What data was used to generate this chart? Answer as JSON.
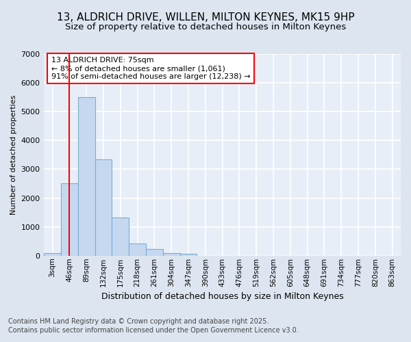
{
  "title_line1": "13, ALDRICH DRIVE, WILLEN, MILTON KEYNES, MK15 9HP",
  "title_line2": "Size of property relative to detached houses in Milton Keynes",
  "xlabel": "Distribution of detached houses by size in Milton Keynes",
  "ylabel": "Number of detached properties",
  "categories": [
    "3sqm",
    "46sqm",
    "89sqm",
    "132sqm",
    "175sqm",
    "218sqm",
    "261sqm",
    "304sqm",
    "347sqm",
    "390sqm",
    "433sqm",
    "476sqm",
    "519sqm",
    "562sqm",
    "605sqm",
    "648sqm",
    "691sqm",
    "734sqm",
    "777sqm",
    "820sqm",
    "863sqm"
  ],
  "values": [
    100,
    2500,
    5500,
    3350,
    1330,
    420,
    220,
    100,
    60,
    0,
    0,
    0,
    0,
    0,
    0,
    0,
    0,
    0,
    0,
    0,
    0
  ],
  "bar_color": "#c5d8f0",
  "bar_edge_color": "#7aadd4",
  "vline_color": "red",
  "vline_pos": 1.5,
  "annotation_text": "13 ALDRICH DRIVE: 75sqm\n← 8% of detached houses are smaller (1,061)\n91% of semi-detached houses are larger (12,238) →",
  "annotation_box_color": "white",
  "annotation_box_edge_color": "red",
  "ylim": [
    0,
    7000
  ],
  "yticks": [
    0,
    1000,
    2000,
    3000,
    4000,
    5000,
    6000,
    7000
  ],
  "footer_line1": "Contains HM Land Registry data © Crown copyright and database right 2025.",
  "footer_line2": "Contains public sector information licensed under the Open Government Licence v3.0.",
  "bg_color": "#dde6f0",
  "plot_bg_color": "#e8eef7",
  "grid_color": "white",
  "title_fontsize": 11,
  "subtitle_fontsize": 9.5,
  "ylabel_fontsize": 8,
  "xlabel_fontsize": 9,
  "tick_fontsize": 8,
  "xtick_fontsize": 7.5,
  "footer_fontsize": 7,
  "annot_fontsize": 8
}
